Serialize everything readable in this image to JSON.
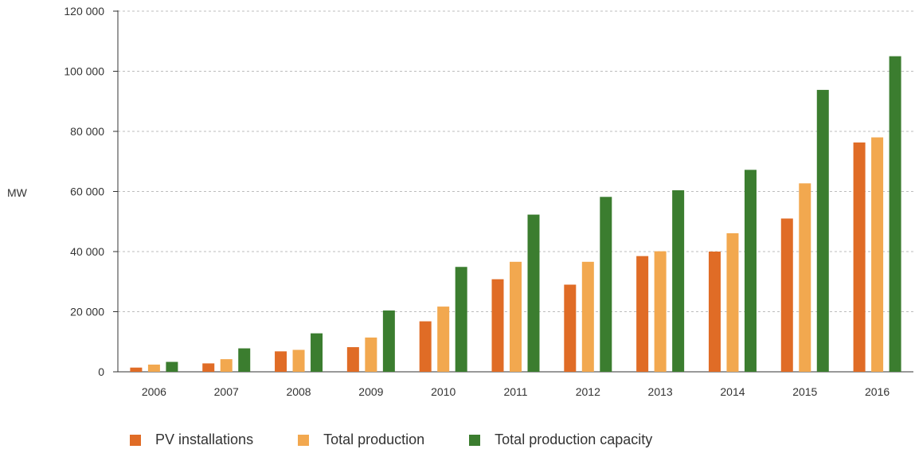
{
  "chart_data": {
    "type": "bar",
    "title": "",
    "xlabel": "",
    "ylabel": "MW",
    "ylim": [
      0,
      120000
    ],
    "yticks": [
      0,
      20000,
      40000,
      60000,
      80000,
      100000,
      120000
    ],
    "ytick_labels": [
      "0",
      "20 000",
      "40 000",
      "60 000",
      "80 000",
      "100 000",
      "120 000"
    ],
    "grid": true,
    "legend_position": "bottom",
    "categories": [
      "2006",
      "2007",
      "2008",
      "2009",
      "2010",
      "2011",
      "2012",
      "2013",
      "2014",
      "2015",
      "2016"
    ],
    "series": [
      {
        "name": "PV installations",
        "color": "#e06c26",
        "values": [
          1400,
          2800,
          6800,
          8200,
          16800,
          30800,
          29000,
          38500,
          40000,
          51000,
          76300
        ]
      },
      {
        "name": "Total production",
        "color": "#f2a84f",
        "values": [
          2400,
          4200,
          7300,
          11400,
          21700,
          36600,
          36600,
          40100,
          46100,
          62700,
          78000
        ]
      },
      {
        "name": "Total production capacity",
        "color": "#3b7d2f",
        "values": [
          3300,
          7800,
          12800,
          20400,
          34900,
          52300,
          58200,
          60400,
          67200,
          93800,
          105000
        ]
      }
    ]
  }
}
